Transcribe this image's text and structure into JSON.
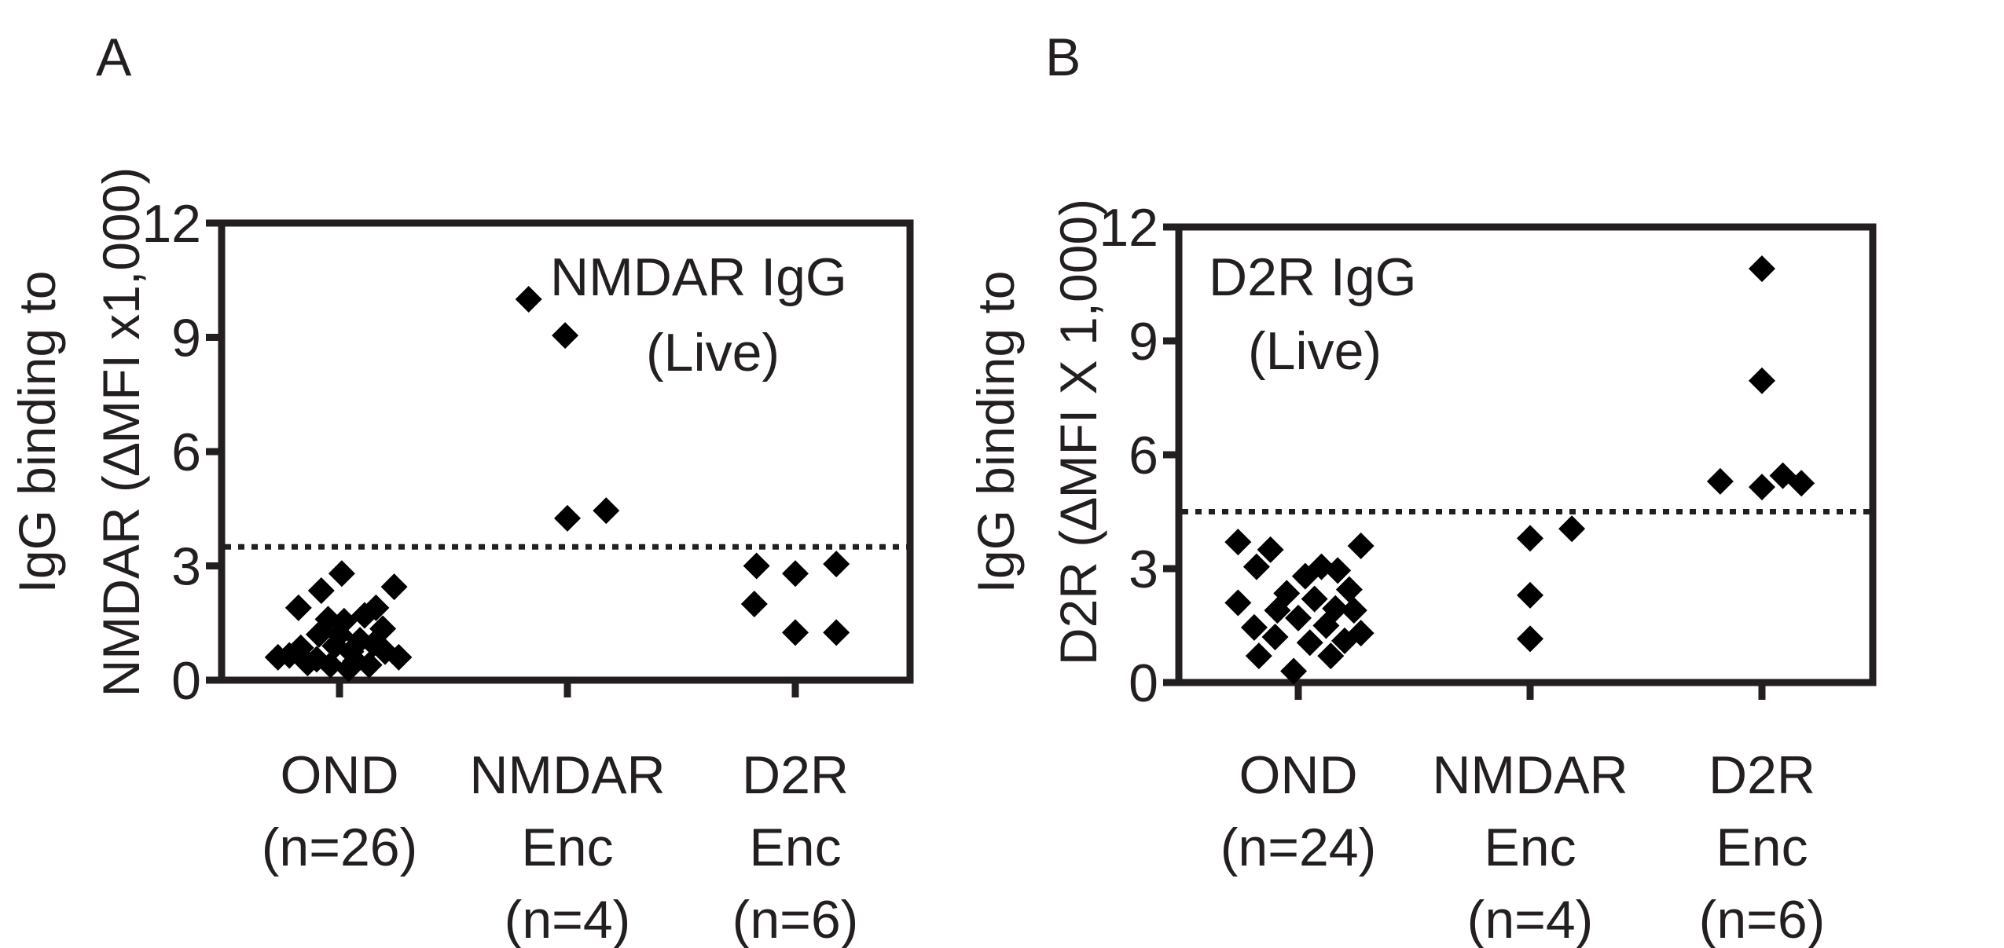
{
  "chart_data": [
    {
      "type": "scatter",
      "panel_label": "A",
      "ylabel_lines": [
        "IgG binding to",
        "NMDAR (∆MFI x1,000)"
      ],
      "ylim": [
        0,
        12
      ],
      "yticks": [
        "0",
        "3",
        "6",
        "9",
        "12"
      ],
      "cutoff": 3.5,
      "annotation": [
        "NMDAR IgG",
        "(Live)"
      ],
      "categories": [
        {
          "lines": [
            "OND",
            "(n=26)"
          ],
          "n": 26
        },
        {
          "lines": [
            "NMDAR",
            "Enc",
            "(n=4)"
          ],
          "n": 4
        },
        {
          "lines": [
            "D2R",
            "Enc",
            "(n=6)"
          ],
          "n": 6
        }
      ],
      "series": [
        {
          "name": "OND",
          "points": [
            {
              "dx": -0.22,
              "y": 0.65
            },
            {
              "dx": -0.17,
              "y": 0.85
            },
            {
              "dx": -0.14,
              "y": 0.45
            },
            {
              "dx": -0.18,
              "y": 1.9
            },
            {
              "dx": -0.09,
              "y": 1.2
            },
            {
              "dx": -0.1,
              "y": 0.55
            },
            {
              "dx": -0.08,
              "y": 2.35
            },
            {
              "dx": -0.04,
              "y": 0.4
            },
            {
              "dx": -0.02,
              "y": 0.9
            },
            {
              "dx": 0.0,
              "y": 1.2
            },
            {
              "dx": 0.01,
              "y": 2.8
            },
            {
              "dx": 0.02,
              "y": 1.55
            },
            {
              "dx": 0.04,
              "y": 0.3
            },
            {
              "dx": 0.05,
              "y": 0.75
            },
            {
              "dx": 0.07,
              "y": 0.5
            },
            {
              "dx": 0.09,
              "y": 1.05
            },
            {
              "dx": 0.11,
              "y": 1.7
            },
            {
              "dx": 0.13,
              "y": 0.4
            },
            {
              "dx": 0.15,
              "y": 0.95
            },
            {
              "dx": 0.16,
              "y": 1.9
            },
            {
              "dx": 0.19,
              "y": 1.35
            },
            {
              "dx": 0.2,
              "y": 0.75
            },
            {
              "dx": 0.24,
              "y": 2.45
            },
            {
              "dx": 0.26,
              "y": 0.6
            },
            {
              "dx": -0.27,
              "y": 0.6
            },
            {
              "dx": -0.05,
              "y": 1.6
            }
          ]
        },
        {
          "name": "NMDAR Enc",
          "points": [
            {
              "dx": -0.17,
              "y": 10.0
            },
            {
              "dx": -0.01,
              "y": 9.05
            },
            {
              "dx": 0.0,
              "y": 4.25
            },
            {
              "dx": 0.17,
              "y": 4.45
            }
          ]
        },
        {
          "name": "D2R Enc",
          "points": [
            {
              "dx": -0.17,
              "y": 3.0
            },
            {
              "dx": -0.18,
              "y": 2.0
            },
            {
              "dx": 0.0,
              "y": 2.8
            },
            {
              "dx": 0.0,
              "y": 1.25
            },
            {
              "dx": 0.18,
              "y": 3.05
            },
            {
              "dx": 0.18,
              "y": 1.25
            }
          ]
        }
      ]
    },
    {
      "type": "scatter",
      "panel_label": "B",
      "ylabel_lines": [
        "IgG binding to",
        "D2R (∆MFI X 1,000)"
      ],
      "ylim": [
        0,
        12
      ],
      "yticks": [
        "0",
        "3",
        "6",
        "9",
        "12"
      ],
      "cutoff": 4.5,
      "annotation": [
        "D2R IgG",
        "(Live)"
      ],
      "categories": [
        {
          "lines": [
            "OND",
            "(n=24)"
          ],
          "n": 24
        },
        {
          "lines": [
            "NMDAR",
            "Enc",
            "(n=4)"
          ],
          "n": 4
        },
        {
          "lines": [
            "D2R",
            "Enc",
            "(n=6)"
          ],
          "n": 6
        }
      ],
      "series": [
        {
          "name": "OND",
          "points": [
            {
              "dx": -0.26,
              "y": 3.7
            },
            {
              "dx": -0.26,
              "y": 2.1
            },
            {
              "dx": -0.19,
              "y": 1.45
            },
            {
              "dx": -0.18,
              "y": 3.05
            },
            {
              "dx": -0.17,
              "y": 0.7
            },
            {
              "dx": -0.12,
              "y": 3.5
            },
            {
              "dx": -0.09,
              "y": 1.9
            },
            {
              "dx": -0.1,
              "y": 1.2
            },
            {
              "dx": -0.05,
              "y": 2.35
            },
            {
              "dx": -0.02,
              "y": 0.3
            },
            {
              "dx": 0.0,
              "y": 1.7
            },
            {
              "dx": 0.03,
              "y": 2.8
            },
            {
              "dx": 0.05,
              "y": 1.05
            },
            {
              "dx": 0.07,
              "y": 2.2
            },
            {
              "dx": 0.1,
              "y": 3.05
            },
            {
              "dx": 0.12,
              "y": 1.5
            },
            {
              "dx": 0.14,
              "y": 0.7
            },
            {
              "dx": 0.16,
              "y": 1.95
            },
            {
              "dx": 0.17,
              "y": 2.95
            },
            {
              "dx": 0.2,
              "y": 1.1
            },
            {
              "dx": 0.22,
              "y": 2.45
            },
            {
              "dx": 0.24,
              "y": 1.9
            },
            {
              "dx": 0.27,
              "y": 3.6
            },
            {
              "dx": 0.27,
              "y": 1.3
            }
          ]
        },
        {
          "name": "NMDAR Enc",
          "points": [
            {
              "dx": 0.0,
              "y": 3.8
            },
            {
              "dx": 0.18,
              "y": 4.05
            },
            {
              "dx": 0.0,
              "y": 2.3
            },
            {
              "dx": 0.0,
              "y": 1.15
            }
          ]
        },
        {
          "name": "D2R Enc",
          "points": [
            {
              "dx": 0.0,
              "y": 10.9
            },
            {
              "dx": 0.0,
              "y": 7.95
            },
            {
              "dx": -0.18,
              "y": 5.3
            },
            {
              "dx": 0.0,
              "y": 5.15
            },
            {
              "dx": 0.09,
              "y": 5.45
            },
            {
              "dx": 0.17,
              "y": 5.25
            }
          ]
        }
      ]
    }
  ]
}
